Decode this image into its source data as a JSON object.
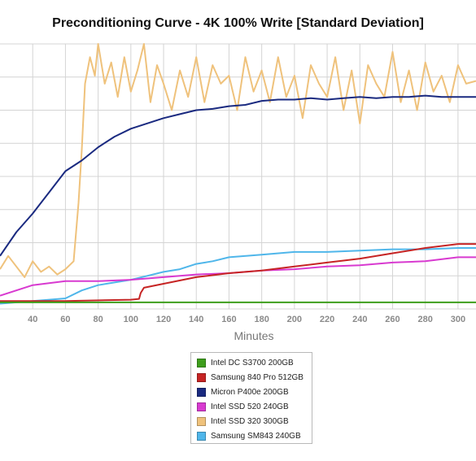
{
  "chart_data": {
    "type": "line",
    "title": "Preconditioning Curve - 4K 100% Write [Standard Deviation]",
    "xlabel": "Minutes",
    "ylabel": "",
    "xlim": [
      20,
      311
    ],
    "ylim": [
      0,
      100
    ],
    "x_ticks": [
      40,
      60,
      80,
      100,
      120,
      140,
      160,
      180,
      200,
      220,
      240,
      260,
      280,
      300
    ],
    "grid": true,
    "legend_position": "bottom-center",
    "series": [
      {
        "name": "Intel DC S3700 200GB",
        "color": "#3e9e1c",
        "points": [
          [
            20,
            2.5
          ],
          [
            60,
            2.5
          ],
          [
            100,
            2.5
          ],
          [
            140,
            2.5
          ],
          [
            180,
            2.5
          ],
          [
            220,
            2.5
          ],
          [
            260,
            2.5
          ],
          [
            311,
            2.5
          ]
        ]
      },
      {
        "name": "Samsung 840 Pro 512GB",
        "color": "#c62424",
        "points": [
          [
            20,
            3
          ],
          [
            60,
            3
          ],
          [
            100,
            3.5
          ],
          [
            105,
            3.8
          ],
          [
            106,
            6
          ],
          [
            108,
            8
          ],
          [
            120,
            9.5
          ],
          [
            140,
            12
          ],
          [
            160,
            13.5
          ],
          [
            180,
            14.5
          ],
          [
            200,
            16
          ],
          [
            220,
            17.5
          ],
          [
            240,
            19
          ],
          [
            260,
            21
          ],
          [
            280,
            23
          ],
          [
            300,
            24.5
          ],
          [
            311,
            24.5
          ]
        ]
      },
      {
        "name": "Micron P400e 200GB",
        "color": "#1a2a80",
        "points": [
          [
            20,
            20
          ],
          [
            30,
            29
          ],
          [
            40,
            36
          ],
          [
            50,
            44
          ],
          [
            60,
            52
          ],
          [
            70,
            56
          ],
          [
            80,
            61
          ],
          [
            90,
            65
          ],
          [
            100,
            68
          ],
          [
            110,
            70
          ],
          [
            120,
            72
          ],
          [
            130,
            73.5
          ],
          [
            140,
            75
          ],
          [
            150,
            75.5
          ],
          [
            160,
            76.5
          ],
          [
            170,
            77
          ],
          [
            180,
            78.5
          ],
          [
            190,
            79
          ],
          [
            200,
            79
          ],
          [
            210,
            79.5
          ],
          [
            220,
            79
          ],
          [
            230,
            79.5
          ],
          [
            240,
            80
          ],
          [
            250,
            79.5
          ],
          [
            260,
            80
          ],
          [
            270,
            80
          ],
          [
            280,
            80.5
          ],
          [
            290,
            80
          ],
          [
            300,
            80
          ],
          [
            311,
            80
          ]
        ]
      },
      {
        "name": "Intel SSD 520 240GB",
        "color": "#d83ad0",
        "points": [
          [
            20,
            5
          ],
          [
            40,
            9
          ],
          [
            60,
            10.5
          ],
          [
            80,
            10.5
          ],
          [
            100,
            11
          ],
          [
            120,
            12
          ],
          [
            140,
            13
          ],
          [
            160,
            13.5
          ],
          [
            180,
            14.5
          ],
          [
            200,
            15
          ],
          [
            220,
            16
          ],
          [
            240,
            16.5
          ],
          [
            260,
            17.5
          ],
          [
            280,
            18
          ],
          [
            300,
            19.5
          ],
          [
            311,
            19.5
          ]
        ]
      },
      {
        "name": "Intel SSD 320 300GB",
        "color": "#efc27c",
        "points": [
          [
            20,
            15
          ],
          [
            25,
            20
          ],
          [
            30,
            16
          ],
          [
            35,
            12
          ],
          [
            40,
            18
          ],
          [
            45,
            14
          ],
          [
            50,
            16
          ],
          [
            55,
            13
          ],
          [
            60,
            15
          ],
          [
            65,
            18
          ],
          [
            68,
            40
          ],
          [
            70,
            60
          ],
          [
            72,
            85
          ],
          [
            75,
            95
          ],
          [
            78,
            88
          ],
          [
            80,
            100
          ],
          [
            84,
            85
          ],
          [
            88,
            93
          ],
          [
            92,
            80
          ],
          [
            96,
            95
          ],
          [
            100,
            82
          ],
          [
            104,
            90
          ],
          [
            108,
            100
          ],
          [
            112,
            78
          ],
          [
            116,
            92
          ],
          [
            120,
            85
          ],
          [
            125,
            75
          ],
          [
            130,
            90
          ],
          [
            135,
            80
          ],
          [
            140,
            95
          ],
          [
            145,
            78
          ],
          [
            150,
            92
          ],
          [
            155,
            85
          ],
          [
            160,
            88
          ],
          [
            165,
            75
          ],
          [
            170,
            95
          ],
          [
            175,
            82
          ],
          [
            180,
            90
          ],
          [
            185,
            78
          ],
          [
            190,
            95
          ],
          [
            195,
            80
          ],
          [
            200,
            88
          ],
          [
            205,
            72
          ],
          [
            210,
            92
          ],
          [
            215,
            85
          ],
          [
            220,
            80
          ],
          [
            225,
            95
          ],
          [
            230,
            75
          ],
          [
            235,
            90
          ],
          [
            240,
            70
          ],
          [
            245,
            92
          ],
          [
            250,
            85
          ],
          [
            255,
            80
          ],
          [
            260,
            97
          ],
          [
            265,
            78
          ],
          [
            270,
            90
          ],
          [
            275,
            75
          ],
          [
            280,
            93
          ],
          [
            285,
            82
          ],
          [
            290,
            88
          ],
          [
            295,
            78
          ],
          [
            300,
            92
          ],
          [
            305,
            85
          ],
          [
            311,
            86
          ]
        ]
      },
      {
        "name": "Samsung SM843 240GB",
        "color": "#4fb6ea",
        "points": [
          [
            20,
            2
          ],
          [
            40,
            3
          ],
          [
            60,
            4
          ],
          [
            70,
            7
          ],
          [
            80,
            9
          ],
          [
            90,
            10
          ],
          [
            100,
            11
          ],
          [
            110,
            12.5
          ],
          [
            120,
            14
          ],
          [
            130,
            15
          ],
          [
            140,
            17
          ],
          [
            150,
            18
          ],
          [
            160,
            19.5
          ],
          [
            180,
            20.5
          ],
          [
            200,
            21.5
          ],
          [
            220,
            21.5
          ],
          [
            240,
            22
          ],
          [
            260,
            22.5
          ],
          [
            280,
            22.5
          ],
          [
            300,
            23
          ],
          [
            311,
            23
          ]
        ]
      }
    ]
  },
  "legend": {
    "items": [
      {
        "label": "Intel DC S3700 200GB",
        "color": "#3e9e1c"
      },
      {
        "label": "Samsung 840 Pro 512GB",
        "color": "#c62424"
      },
      {
        "label": "Micron P400e 200GB",
        "color": "#1a2a80"
      },
      {
        "label": "Intel SSD 520 240GB",
        "color": "#d83ad0"
      },
      {
        "label": "Intel SSD 320 300GB",
        "color": "#efc27c"
      },
      {
        "label": "Samsung SM843 240GB",
        "color": "#4fb6ea"
      }
    ]
  }
}
